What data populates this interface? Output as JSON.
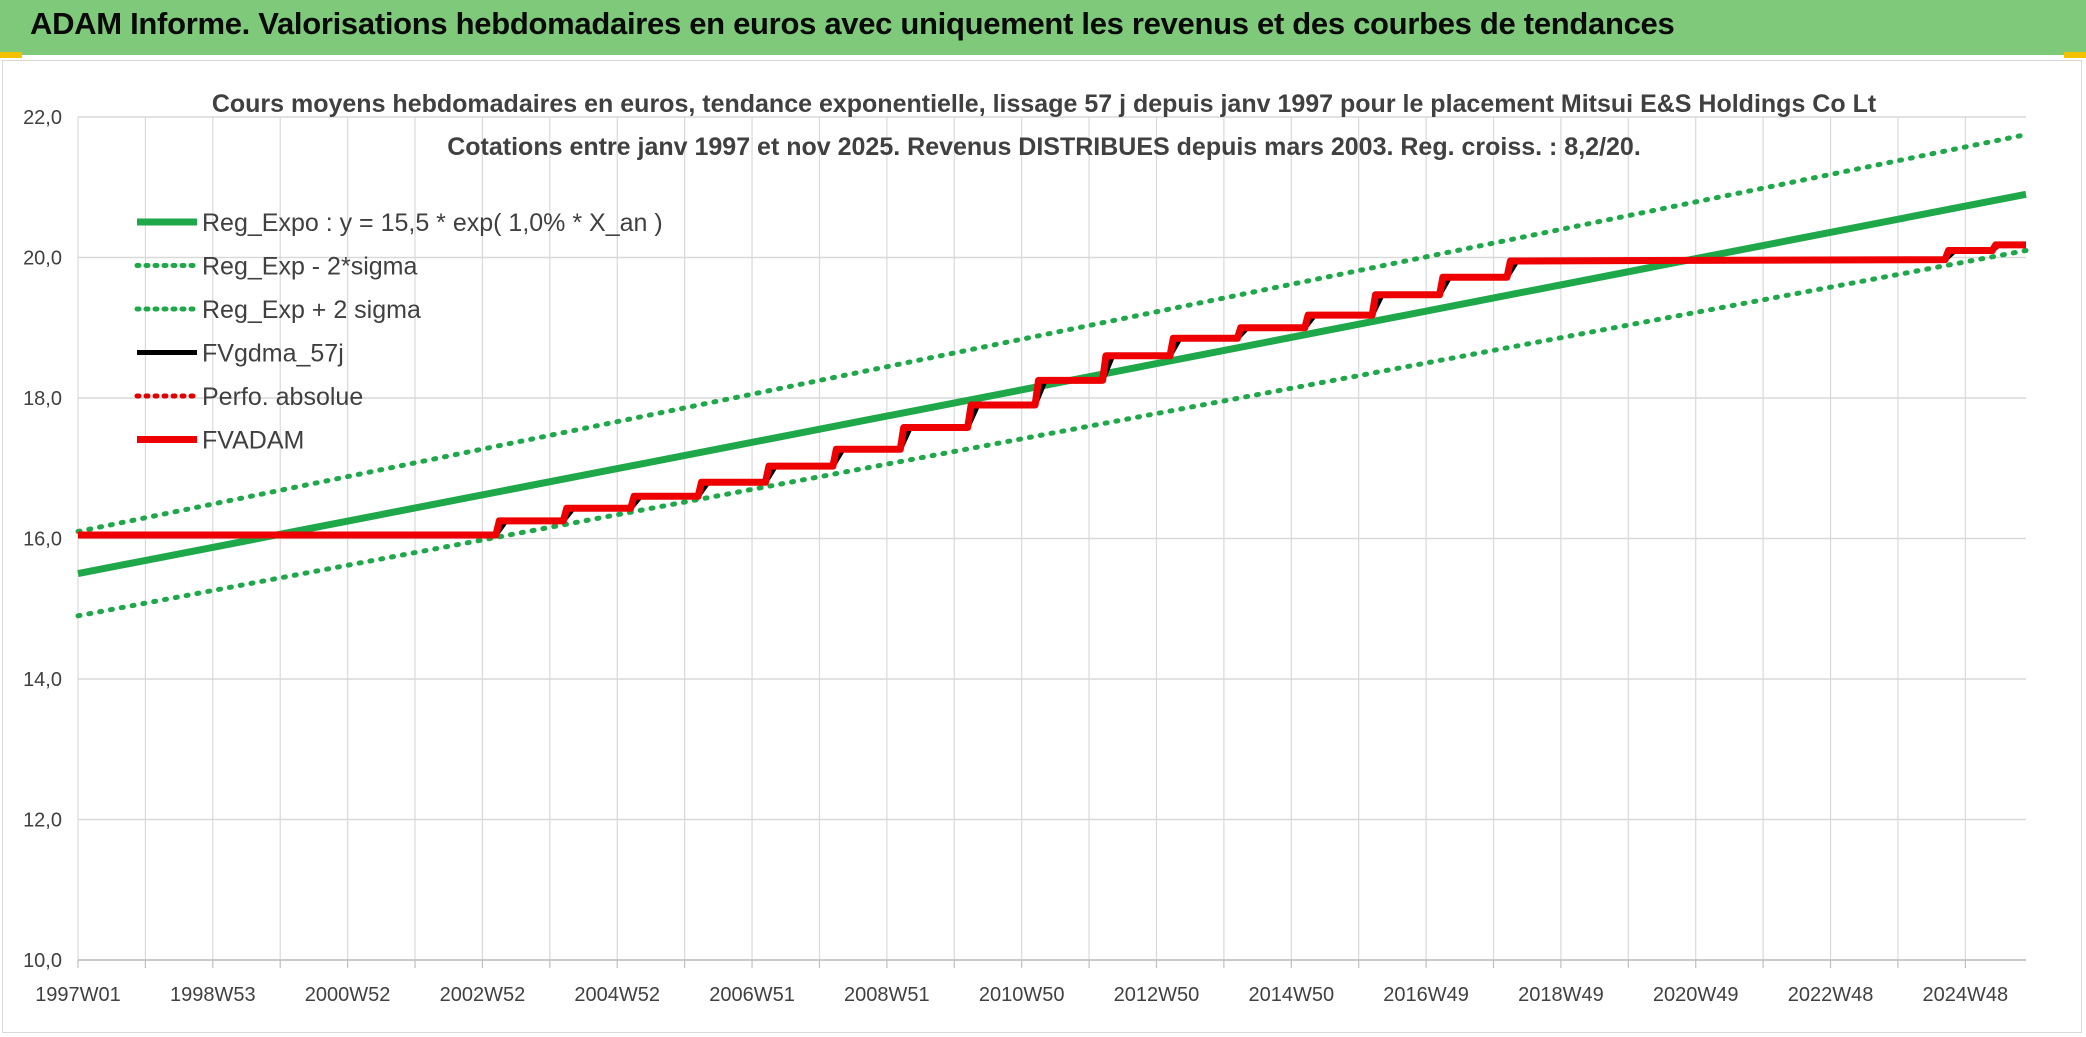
{
  "banner": {
    "title": "ADAM Informe. Valorisations hebdomadaires en euros avec uniquement les revenus et des courbes de tendances",
    "color": "#7fc97a"
  },
  "chart_data": {
    "type": "line",
    "title_line1": "Cours moyens hebdomadaires en euros, tendance exponentielle, lissage 57 j depuis janv 1997 pour le placement Mitsui E&S Holdings Co Lt",
    "title_line2": "Cotations entre janv 1997 et nov 2025. Revenus DISTRIBUES depuis mars 2003. Reg. croiss. : 8,2/20.",
    "ylim": [
      10,
      22
    ],
    "y_ticks": [
      "10,0",
      "12,0",
      "14,0",
      "16,0",
      "18,0",
      "20,0",
      "22,0"
    ],
    "xlim": [
      1997.0,
      2025.9
    ],
    "x_ticks": [
      {
        "label": "1997W01",
        "x": 1997.0
      },
      {
        "label": "1998W53",
        "x": 1999.0
      },
      {
        "label": "2000W52",
        "x": 2001.0
      },
      {
        "label": "2002W52",
        "x": 2003.0
      },
      {
        "label": "2004W52",
        "x": 2005.0
      },
      {
        "label": "2006W51",
        "x": 2007.0
      },
      {
        "label": "2008W51",
        "x": 2009.0
      },
      {
        "label": "2010W50",
        "x": 2011.0
      },
      {
        "label": "2012W50",
        "x": 2013.0
      },
      {
        "label": "2014W50",
        "x": 2015.0
      },
      {
        "label": "2016W49",
        "x": 2017.0
      },
      {
        "label": "2018W49",
        "x": 2019.0
      },
      {
        "label": "2020W49",
        "x": 2021.0
      },
      {
        "label": "2022W48",
        "x": 2023.0
      },
      {
        "label": "2024W48",
        "x": 2025.0
      }
    ],
    "grid": true,
    "legend_position": "top-left",
    "series": [
      {
        "name": "Reg_Expo : y = 15,5 * exp( 1,0% *  X_an )",
        "color": "#1fa84a",
        "style": "solid-thick",
        "x": [
          1997.0,
          2025.9
        ],
        "y": [
          15.5,
          20.9
        ]
      },
      {
        "name": "Reg_Exp - 2*sigma",
        "color": "#1fa84a",
        "style": "dotted",
        "x": [
          1997.0,
          2025.9
        ],
        "y": [
          14.9,
          20.1
        ]
      },
      {
        "name": "Reg_Exp + 2 sigma",
        "color": "#1fa84a",
        "style": "dotted",
        "x": [
          1997.0,
          2025.9
        ],
        "y": [
          16.1,
          21.75
        ]
      },
      {
        "name": "FVgdma_57j",
        "color": "#000000",
        "style": "solid",
        "x": [
          1997.0,
          2003.2,
          2003.35,
          2004.2,
          2004.35,
          2005.2,
          2005.35,
          2006.2,
          2006.35,
          2007.2,
          2007.35,
          2008.2,
          2008.35,
          2009.2,
          2009.35,
          2010.2,
          2010.35,
          2011.2,
          2011.35,
          2012.2,
          2012.35,
          2013.2,
          2013.35,
          2014.2,
          2014.35,
          2015.2,
          2015.35,
          2016.2,
          2016.35,
          2017.2,
          2017.35,
          2018.2,
          2018.35,
          2024.7,
          2024.85,
          2025.4,
          2025.5,
          2025.9
        ],
        "y": [
          16.05,
          16.05,
          16.25,
          16.25,
          16.43,
          16.43,
          16.6,
          16.6,
          16.8,
          16.8,
          17.03,
          17.03,
          17.27,
          17.27,
          17.58,
          17.58,
          17.9,
          17.9,
          18.25,
          18.25,
          18.6,
          18.6,
          18.85,
          18.85,
          19.0,
          19.0,
          19.18,
          19.18,
          19.47,
          19.47,
          19.72,
          19.72,
          19.95,
          19.97,
          20.1,
          20.1,
          20.18,
          20.18
        ]
      },
      {
        "name": "Perfo. absolue",
        "color": "#e00000",
        "style": "dotted",
        "x": [],
        "y": []
      },
      {
        "name": "FVADAM",
        "color": "#ee0000",
        "style": "solid-thick",
        "x": [
          1997.0,
          2003.2,
          2003.25,
          2004.2,
          2004.25,
          2005.2,
          2005.25,
          2006.2,
          2006.25,
          2007.2,
          2007.25,
          2008.2,
          2008.25,
          2009.2,
          2009.25,
          2010.2,
          2010.25,
          2011.2,
          2011.25,
          2012.2,
          2012.25,
          2013.2,
          2013.25,
          2014.2,
          2014.25,
          2015.2,
          2015.25,
          2016.2,
          2016.25,
          2017.2,
          2017.25,
          2018.2,
          2018.25,
          2024.7,
          2024.75,
          2025.4,
          2025.45,
          2025.9
        ],
        "y": [
          16.05,
          16.05,
          16.25,
          16.25,
          16.43,
          16.43,
          16.6,
          16.6,
          16.8,
          16.8,
          17.03,
          17.03,
          17.27,
          17.27,
          17.58,
          17.58,
          17.9,
          17.9,
          18.25,
          18.25,
          18.6,
          18.6,
          18.85,
          18.85,
          19.0,
          19.0,
          19.18,
          19.18,
          19.47,
          19.47,
          19.72,
          19.72,
          19.95,
          19.97,
          20.1,
          20.1,
          20.18,
          20.18
        ]
      }
    ]
  }
}
